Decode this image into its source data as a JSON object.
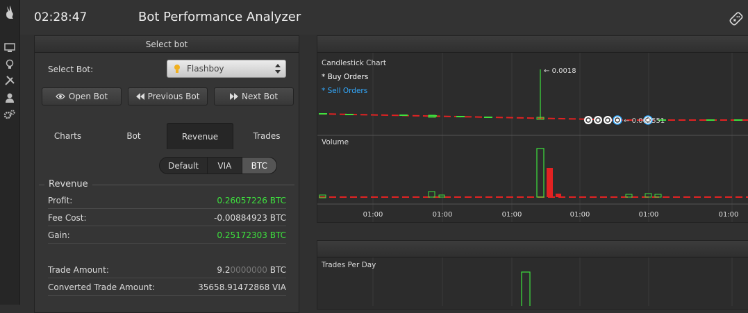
{
  "header": {
    "clock": "02:28:47",
    "title": "Bot Performance Analyzer"
  },
  "sidebar": {
    "icons": [
      "rabbit-logo-icon",
      "monitor-icon",
      "bulb-icon",
      "tools-icon",
      "user-icon",
      "gears-icon"
    ]
  },
  "select_panel": {
    "title": "Select bot",
    "select_label": "Select Bot:",
    "selected_bot": "Flashboy",
    "buttons": {
      "open": "Open Bot",
      "previous": "Previous Bot",
      "next": "Next Bot"
    },
    "tabs": [
      "Charts",
      "Bot",
      "Revenue",
      "Trades"
    ],
    "active_tab": "Revenue",
    "currency_options": [
      "Default",
      "VIA",
      "BTC"
    ],
    "active_currency": "BTC"
  },
  "revenue": {
    "title": "Revenue",
    "profit_label": "Profit:",
    "profit_value": "0.26057226 BTC",
    "fee_label": "Fee Cost:",
    "fee_value": "-0.00884923 BTC",
    "gain_label": "Gain:",
    "gain_value": "0.25172303 BTC",
    "trade_amount_label": "Trade Amount:",
    "trade_amount_main": "9.2",
    "trade_amount_dim": "0000000",
    "trade_amount_unit": " BTC",
    "converted_label": "Converted Trade Amount:",
    "converted_value": "35658.91472868 VIA"
  },
  "chart_data": {
    "type": "line",
    "title": "Candlestick Chart",
    "legend": [
      "* Buy Orders",
      "* Sell Orders"
    ],
    "annotations": [
      "0.0018",
      "0.001551"
    ],
    "volume_label": "Volume",
    "x_ticks": [
      "01:00",
      "01:00",
      "01:00",
      "01:00",
      "01:00",
      "01:00",
      "01:00"
    ]
  },
  "trades_chart": {
    "title": "Trades Per Day"
  },
  "colors": {
    "green": "#3ee23e",
    "red": "#e22222",
    "buy": "#ffffff",
    "sell": "#33aaff"
  }
}
